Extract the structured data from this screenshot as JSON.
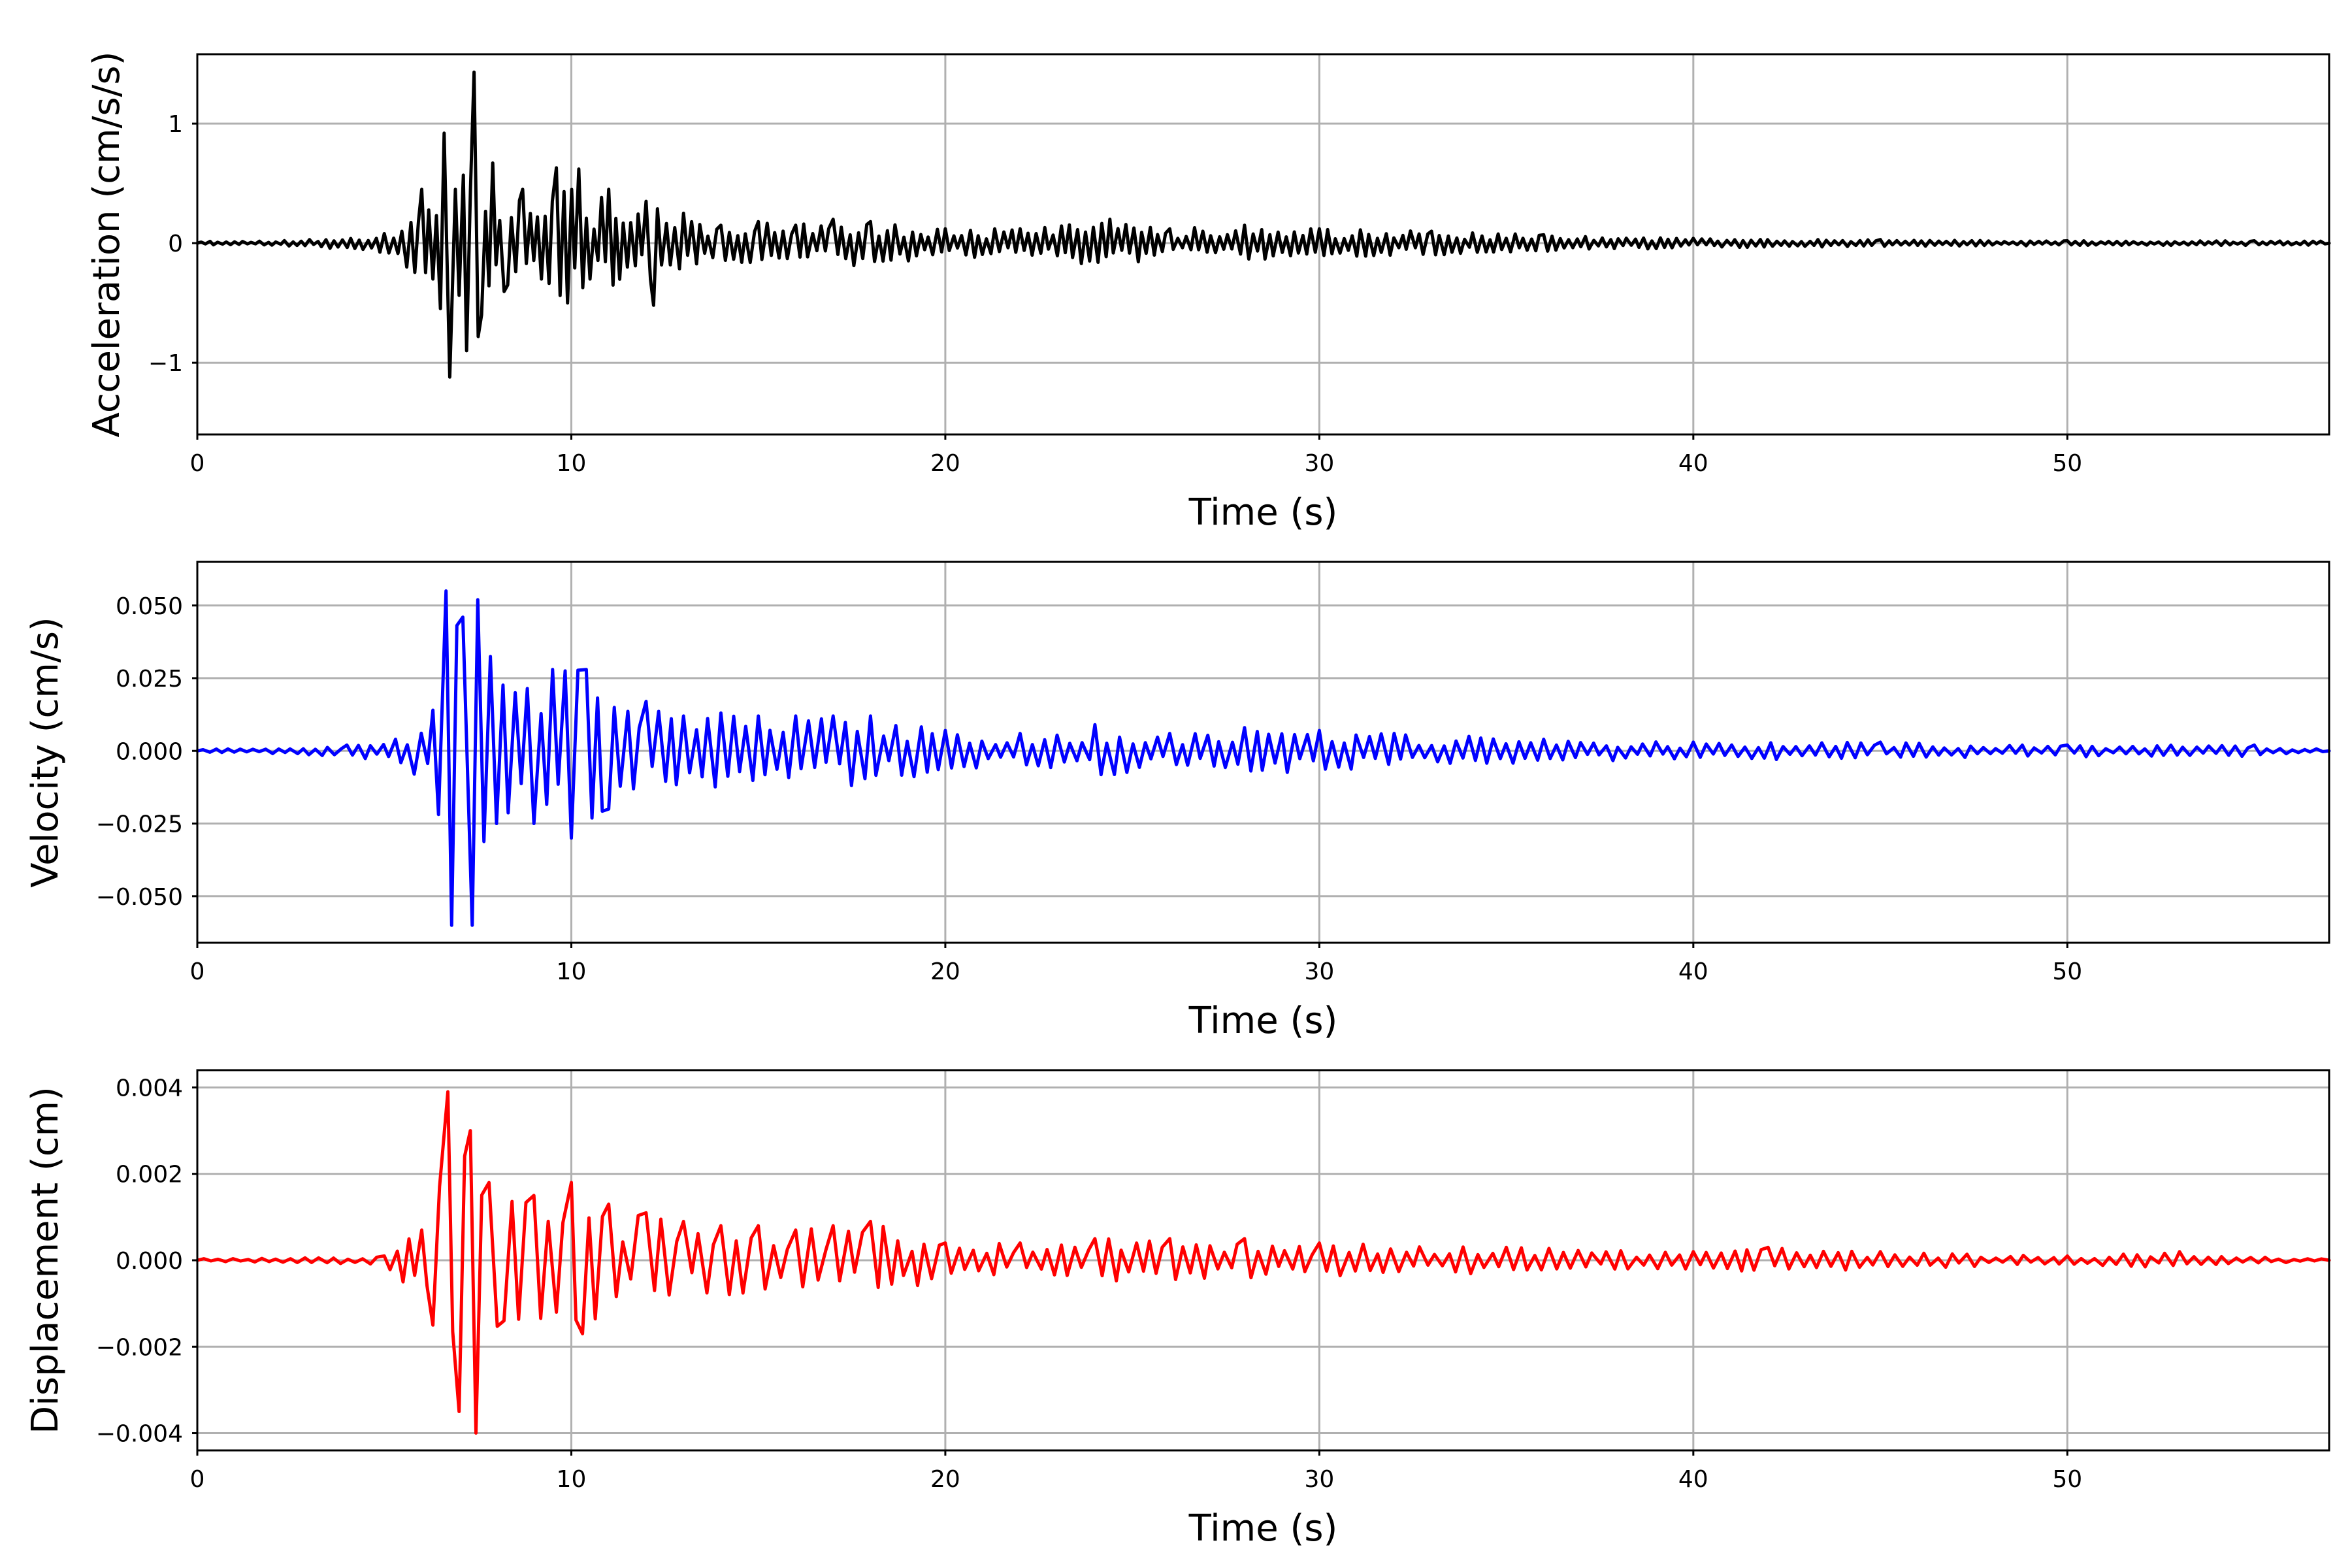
{
  "chart_data": [
    {
      "type": "line",
      "title": "",
      "xlabel": "Time (s)",
      "ylabel": "Acceleration (cm/s/s)",
      "xlim": [
        0,
        57
      ],
      "ylim": [
        -1.6,
        1.58
      ],
      "xticks": [
        0,
        10,
        20,
        30,
        40,
        50
      ],
      "xtick_labels": [
        "0",
        "10",
        "20",
        "30",
        "40",
        "50"
      ],
      "yticks": [
        -1,
        0,
        1
      ],
      "ytick_labels": [
        "−1",
        "0",
        "1"
      ],
      "grid": true,
      "color": "#000000",
      "series": [
        {
          "x": [
            0,
            3,
            5,
            5.6,
            6,
            6.3,
            6.6,
            6.75,
            6.9,
            7.2,
            7.4,
            7.6,
            7.9,
            8.3,
            8.7,
            9.2,
            9.6,
            9.9,
            10.2,
            10.5,
            11,
            11.5,
            12,
            12.2,
            13,
            14,
            15,
            16,
            17,
            18,
            20,
            22,
            24.4,
            26,
            28,
            30,
            33,
            36,
            40,
            45,
            50,
            55,
            57
          ],
          "y": [
            0.0,
            0.03,
            0.08,
            -0.2,
            0.45,
            -0.3,
            0.92,
            -1.12,
            0.45,
            -0.9,
            1.43,
            -0.6,
            0.67,
            -0.35,
            0.45,
            -0.3,
            0.63,
            -0.5,
            0.62,
            -0.3,
            0.45,
            -0.2,
            0.35,
            -0.52,
            0.25,
            0.15,
            0.18,
            0.15,
            0.2,
            0.18,
            0.12,
            0.12,
            0.2,
            0.12,
            0.15,
            0.12,
            0.1,
            0.07,
            0.04,
            0.03,
            0.02,
            0.02,
            0.0
          ]
        }
      ]
    },
    {
      "type": "line",
      "title": "",
      "xlabel": "Time (s)",
      "ylabel": "Velocity (cm/s)",
      "xlim": [
        0,
        57
      ],
      "ylim": [
        -0.066,
        0.065
      ],
      "xticks": [
        0,
        10,
        20,
        30,
        40,
        50
      ],
      "xtick_labels": [
        "0",
        "10",
        "20",
        "30",
        "40",
        "50"
      ],
      "yticks": [
        -0.05,
        -0.025,
        0,
        0.025,
        0.05
      ],
      "ytick_labels": [
        "−0.050",
        "−0.025",
        "0.000",
        "0.025",
        "0.050"
      ],
      "grid": true,
      "color": "#0000ff",
      "series": [
        {
          "x": [
            0,
            4,
            5.3,
            5.8,
            6.3,
            6.65,
            6.8,
            7.1,
            7.35,
            7.5,
            8,
            8.5,
            9,
            9.5,
            10,
            10.4,
            11,
            12,
            13,
            14,
            15,
            16,
            17,
            18,
            20,
            22,
            24,
            26,
            28,
            30,
            32,
            34,
            36,
            40,
            45,
            50,
            55,
            57
          ],
          "y": [
            0.0,
            0.002,
            0.004,
            -0.008,
            0.014,
            0.055,
            -0.06,
            0.046,
            -0.06,
            0.052,
            -0.025,
            0.02,
            -0.025,
            0.028,
            -0.03,
            0.028,
            -0.02,
            0.017,
            0.012,
            0.013,
            0.012,
            0.012,
            0.012,
            0.012,
            0.007,
            0.006,
            0.009,
            0.006,
            0.008,
            0.007,
            0.006,
            0.005,
            0.004,
            0.003,
            0.003,
            0.002,
            0.002,
            0.0
          ]
        }
      ]
    },
    {
      "type": "line",
      "title": "",
      "xlabel": "Time (s)",
      "ylabel": "Displacement (cm)",
      "xlim": [
        0,
        57
      ],
      "ylim": [
        -0.0044,
        0.0044
      ],
      "xticks": [
        0,
        10,
        20,
        30,
        40,
        50
      ],
      "xtick_labels": [
        "0",
        "10",
        "20",
        "30",
        "40",
        "50"
      ],
      "yticks": [
        -0.004,
        -0.002,
        0,
        0.002,
        0.004
      ],
      "ytick_labels": [
        "−0.004",
        "−0.002",
        "0.000",
        "0.002",
        "0.004"
      ],
      "grid": true,
      "color": "#ff0000",
      "series": [
        {
          "x": [
            0,
            5,
            5.5,
            6,
            6.3,
            6.7,
            7.0,
            7.3,
            7.45,
            7.8,
            8.2,
            9,
            9.6,
            10,
            10.3,
            11,
            12,
            13,
            14,
            15,
            16,
            17,
            18,
            20,
            22,
            24,
            26,
            28,
            30,
            35,
            40,
            42,
            45,
            50,
            53,
            57
          ],
          "y": [
            0.0,
            0.0001,
            -0.0005,
            0.0007,
            -0.0015,
            0.0039,
            -0.0035,
            0.003,
            -0.004,
            0.0018,
            -0.0014,
            0.0015,
            -0.0012,
            0.0018,
            -0.0017,
            0.0013,
            0.0011,
            0.0009,
            0.0008,
            0.0008,
            0.0007,
            0.0008,
            0.0009,
            0.0004,
            0.0004,
            0.0005,
            0.0005,
            0.0005,
            0.0004,
            0.0003,
            0.0002,
            0.0003,
            0.0002,
            0.0001,
            0.0002,
            0.0
          ]
        }
      ]
    }
  ]
}
